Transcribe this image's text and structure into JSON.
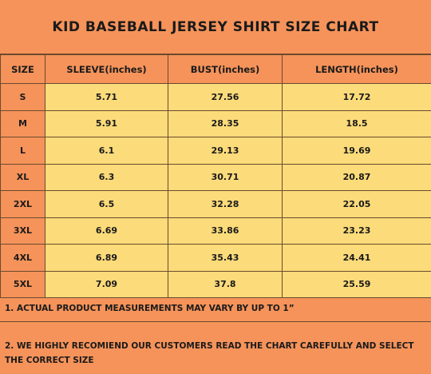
{
  "title": "KID BASEBALL JERSEY SHIRT SIZE CHART",
  "colors": {
    "orange": "#F5935A",
    "yellow": "#FCDB7A",
    "border": "#6b4a2e"
  },
  "table": {
    "headers": [
      "SIZE",
      "SLEEVE(inches)",
      "BUST(inches)",
      "LENGTH(inches)"
    ],
    "rows": [
      [
        "S",
        "5.71",
        "27.56",
        "17.72"
      ],
      [
        "M",
        "5.91",
        "28.35",
        "18.5"
      ],
      [
        "L",
        "6.1",
        "29.13",
        "19.69"
      ],
      [
        "XL",
        "6.3",
        "30.71",
        "20.87"
      ],
      [
        "2XL",
        "6.5",
        "32.28",
        "22.05"
      ],
      [
        "3XL",
        "6.69",
        "33.86",
        "23.23"
      ],
      [
        "4XL",
        "6.89",
        "35.43",
        "24.41"
      ],
      [
        "5XL",
        "7.09",
        "37.8",
        "25.59"
      ]
    ]
  },
  "notes": {
    "note1": "1. ACTUAL PRODUCT MEASUREMENTS MAY VARY BY UP TO 1”",
    "note2": "2. WE HIGHLY RECOMIEND OUR CUSTOMERS READ THE CHART CAREFULLY AND SELECT THE CORRECT SIZE"
  }
}
